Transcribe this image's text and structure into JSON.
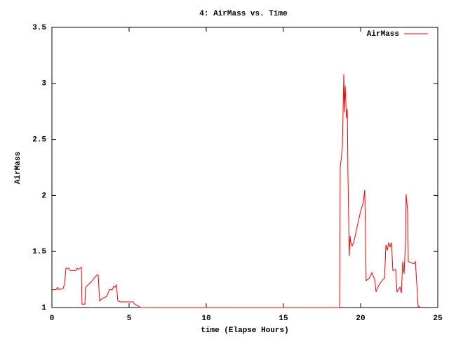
{
  "chart_data": {
    "type": "line",
    "title": "4: AirMass vs. Time",
    "x_label": "time (Elapse Hours)",
    "y_label": "AirMass",
    "xlim": [
      0,
      25
    ],
    "xticks": [
      0,
      5,
      10,
      15,
      20,
      25
    ],
    "ylim": [
      1,
      3.5
    ],
    "yticks": [
      1,
      1.5,
      2,
      2.5,
      3,
      3.5
    ],
    "legend": "top-right",
    "x": [
      0,
      0.27,
      0.36,
      0.45,
      0.73,
      0.82,
      0.91,
      1.09,
      1.18,
      1.55,
      1.64,
      1.73,
      1.91,
      1.95,
      2.14,
      2.18,
      2.55,
      2.91,
      3.0,
      3.09,
      3.27,
      3.55,
      3.73,
      3.91,
      4.0,
      4.09,
      4.18,
      4.27,
      4.45,
      5.27,
      5.36,
      5.64,
      5.73,
      18.64,
      18.68,
      18.82,
      18.91,
      18.95,
      19.0,
      19.09,
      19.14,
      19.18,
      19.27,
      19.32,
      19.36,
      19.45,
      19.55,
      20.0,
      20.18,
      20.27,
      20.36,
      20.55,
      20.73,
      20.91,
      21.0,
      21.18,
      21.45,
      21.55,
      21.64,
      21.73,
      21.82,
      21.91,
      22.0,
      22.09,
      22.27,
      22.36,
      22.55,
      22.64,
      22.73,
      22.82,
      22.91,
      22.95,
      23.05,
      23.09,
      23.45,
      23.55,
      23.64,
      23.73,
      23.91
    ],
    "series": [
      {
        "name": "AirMass",
        "color": "#ff0000",
        "values": [
          1.16,
          1.16,
          1.18,
          1.16,
          1.17,
          1.21,
          1.35,
          1.35,
          1.33,
          1.33,
          1.35,
          1.34,
          1.36,
          1.03,
          1.03,
          1.18,
          1.23,
          1.29,
          1.29,
          1.06,
          1.08,
          1.1,
          1.16,
          1.16,
          1.19,
          1.18,
          1.2,
          1.06,
          1.05,
          1.05,
          1.03,
          1.01,
          1.0,
          1.0,
          2.25,
          2.43,
          3.08,
          2.74,
          2.98,
          2.69,
          2.77,
          2.18,
          1.46,
          1.64,
          1.58,
          1.55,
          1.58,
          1.86,
          1.94,
          2.05,
          1.24,
          1.26,
          1.31,
          1.25,
          1.14,
          1.2,
          1.25,
          1.26,
          1.56,
          1.51,
          1.58,
          1.54,
          1.58,
          1.33,
          1.34,
          1.14,
          1.18,
          1.13,
          1.41,
          1.3,
          1.58,
          2.01,
          1.86,
          1.41,
          1.39,
          1.41,
          1.21,
          1.01,
          1.0
        ]
      }
    ]
  }
}
